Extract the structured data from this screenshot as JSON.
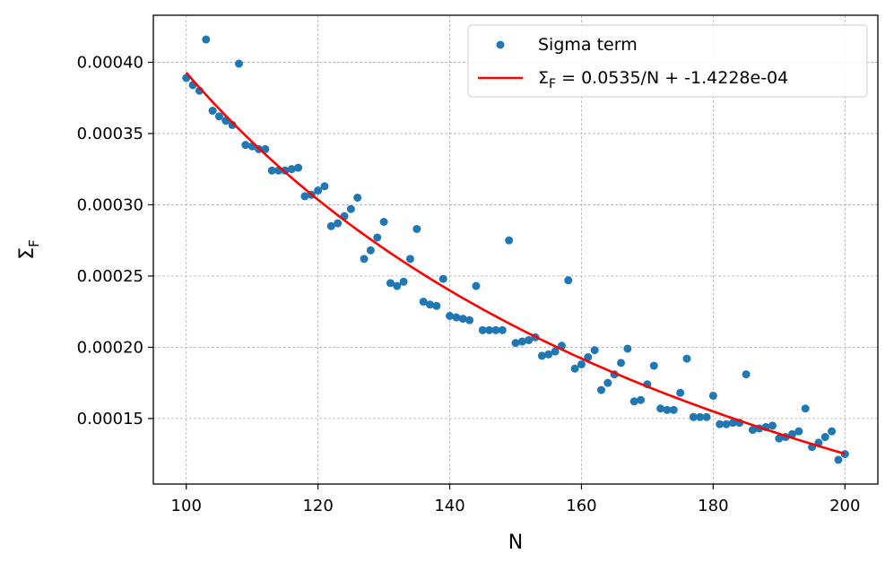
{
  "chart_data": {
    "type": "scatter",
    "xlabel": "N",
    "ylabel_main": "Σ",
    "ylabel_sub": "F",
    "xlim": [
      95,
      205
    ],
    "ylim": [
      0.000104,
      0.000433
    ],
    "x_ticks": [
      100,
      120,
      140,
      160,
      180,
      200
    ],
    "x_tick_labels": [
      "100",
      "120",
      "140",
      "160",
      "180",
      "200"
    ],
    "y_ticks": [
      0.00015,
      0.0002,
      0.00025,
      0.0003,
      0.00035,
      0.0004
    ],
    "y_tick_labels": [
      "0.00015",
      "0.00020",
      "0.00025",
      "0.00030",
      "0.00035",
      "0.00040"
    ],
    "grid": true,
    "legend_position": "top-right",
    "colors": {
      "scatter": "#1f77b4",
      "fit": "#ff0000",
      "grid": "#b0b0b0"
    },
    "series": [
      {
        "name": "Sigma term",
        "kind": "scatter",
        "x": [
          100,
          101,
          102,
          103,
          104,
          105,
          106,
          107,
          108,
          109,
          110,
          111,
          112,
          113,
          114,
          115,
          116,
          117,
          118,
          119,
          120,
          121,
          122,
          123,
          124,
          125,
          126,
          127,
          128,
          129,
          130,
          131,
          132,
          133,
          134,
          135,
          136,
          137,
          138,
          139,
          140,
          141,
          142,
          143,
          144,
          145,
          146,
          147,
          148,
          149,
          150,
          151,
          152,
          153,
          154,
          155,
          156,
          157,
          158,
          159,
          160,
          161,
          162,
          163,
          164,
          165,
          166,
          167,
          168,
          169,
          170,
          171,
          172,
          173,
          174,
          175,
          176,
          177,
          178,
          179,
          180,
          181,
          182,
          183,
          184,
          185,
          186,
          187,
          188,
          189,
          190,
          191,
          192,
          193,
          194,
          195,
          196,
          197,
          198,
          199,
          200
        ],
        "y": [
          0.000389,
          0.000384,
          0.00038,
          0.000416,
          0.000366,
          0.000362,
          0.000359,
          0.000356,
          0.000399,
          0.000342,
          0.000341,
          0.000339,
          0.000339,
          0.000324,
          0.000324,
          0.000324,
          0.000325,
          0.000326,
          0.000306,
          0.000307,
          0.00031,
          0.000313,
          0.000285,
          0.000287,
          0.000292,
          0.000297,
          0.000305,
          0.000262,
          0.000268,
          0.000277,
          0.000288,
          0.000245,
          0.000243,
          0.000246,
          0.000262,
          0.000283,
          0.000232,
          0.00023,
          0.000229,
          0.000248,
          0.000222,
          0.000221,
          0.00022,
          0.000219,
          0.000243,
          0.000212,
          0.000212,
          0.000212,
          0.000212,
          0.000275,
          0.000203,
          0.000204,
          0.000205,
          0.000207,
          0.000194,
          0.000195,
          0.000197,
          0.000201,
          0.000247,
          0.000185,
          0.000188,
          0.000193,
          0.000198,
          0.00017,
          0.000175,
          0.000181,
          0.000189,
          0.000199,
          0.000162,
          0.000163,
          0.000174,
          0.000187,
          0.000157,
          0.000156,
          0.000156,
          0.000168,
          0.000192,
          0.000151,
          0.000151,
          0.000151,
          0.000166,
          0.000146,
          0.000146,
          0.000147,
          0.000147,
          0.000181,
          0.000142,
          0.000143,
          0.000144,
          0.000145,
          0.000136,
          0.000137,
          0.000139,
          0.000141,
          0.000157,
          0.00013,
          0.000133,
          0.000137,
          0.000141,
          0.000121,
          0.000125
        ]
      },
      {
        "name": "Σ",
        "name_sub": "F",
        "name_rest": " = 0.0535/N + -1.4228e-04",
        "kind": "line",
        "coef_a": 0.0535,
        "coef_b": -0.00014228,
        "x_range": [
          100,
          200
        ]
      }
    ]
  }
}
